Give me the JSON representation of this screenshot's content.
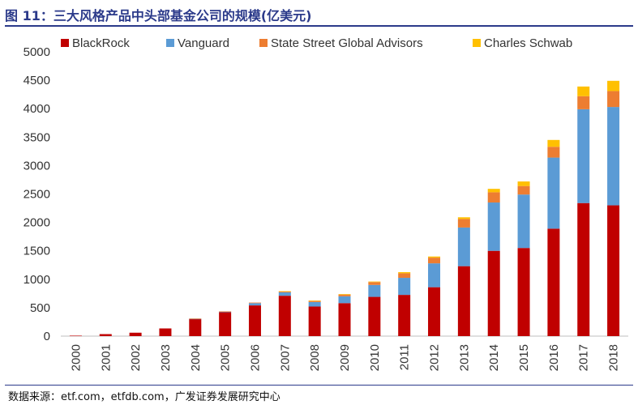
{
  "header": {
    "title": "图 11：三大风格产品中头部基金公司的规模(亿美元)"
  },
  "footer": {
    "source": "数据来源：etf.com，etfdb.com，广发证券发展研究中心"
  },
  "colors": {
    "BlackRock": "#c00000",
    "Vanguard": "#5b9bd5",
    "State Street Global Advisors": "#ed7d31",
    "Charles Schwab": "#ffc000",
    "title": "#2b3a8a"
  },
  "chart_data": {
    "type": "bar",
    "stacked": true,
    "title": "",
    "xlabel": "",
    "ylabel": "",
    "ylim": [
      0,
      5000
    ],
    "yticks": [
      0,
      500,
      1000,
      1500,
      2000,
      2500,
      3000,
      3500,
      4000,
      4500,
      5000
    ],
    "grid": false,
    "legend_position": "top",
    "categories": [
      "2000",
      "2001",
      "2002",
      "2003",
      "2004",
      "2005",
      "2006",
      "2007",
      "2008",
      "2009",
      "2010",
      "2011",
      "2012",
      "2013",
      "2014",
      "2015",
      "2016",
      "2017",
      "2018"
    ],
    "series": [
      {
        "name": "BlackRock",
        "values": [
          8,
          35,
          60,
          135,
          300,
          420,
          540,
          710,
          520,
          580,
          690,
          725,
          860,
          1230,
          1500,
          1550,
          1890,
          2340,
          2300
        ]
      },
      {
        "name": "Vanguard",
        "values": [
          0,
          0,
          0,
          0,
          5,
          10,
          40,
          60,
          80,
          120,
          210,
          300,
          420,
          680,
          850,
          940,
          1250,
          1650,
          1730
        ]
      },
      {
        "name": "State Street Global Advisors",
        "values": [
          0,
          0,
          0,
          0,
          5,
          5,
          10,
          15,
          20,
          30,
          50,
          80,
          100,
          150,
          180,
          150,
          190,
          230,
          280
        ]
      },
      {
        "name": "Charles Schwab",
        "values": [
          0,
          0,
          0,
          0,
          0,
          0,
          0,
          5,
          5,
          10,
          10,
          20,
          20,
          30,
          60,
          80,
          120,
          170,
          180
        ]
      }
    ]
  }
}
